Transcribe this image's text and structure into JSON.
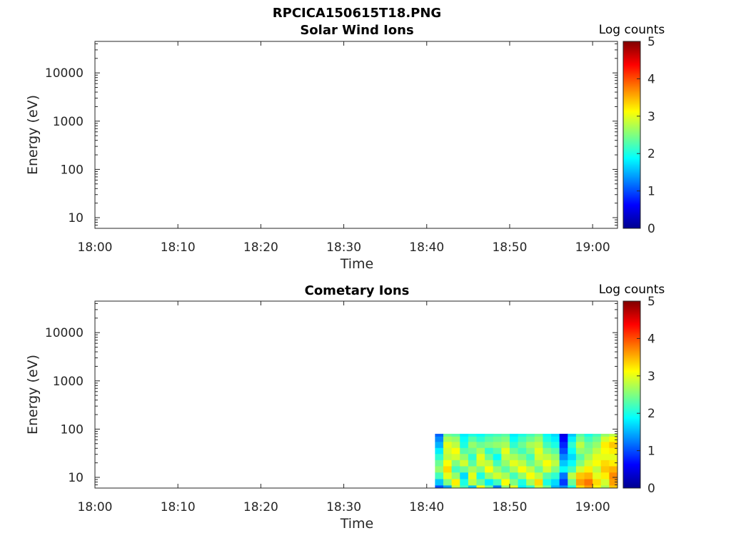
{
  "figure": {
    "title": "RPCICA150615T18.PNG"
  },
  "chart_data": [
    {
      "type": "heatmap",
      "title": "Solar Wind Ions",
      "xlabel": "Time",
      "ylabel": "Energy (eV)",
      "x_ticks": [
        "18:00",
        "18:10",
        "18:20",
        "18:30",
        "18:40",
        "18:50",
        "19:00"
      ],
      "xlim": [
        "18:00",
        "19:03"
      ],
      "y_scale": "log",
      "y_ticks": [
        10,
        100,
        1000,
        10000
      ],
      "y_tick_labels": [
        "10",
        "100",
        "1000",
        "10000"
      ],
      "ylim": [
        6,
        45000
      ],
      "colorbar": {
        "label": "Log counts",
        "range": [
          0,
          5
        ],
        "ticks": [
          "0",
          "1",
          "2",
          "3",
          "4",
          "5"
        ],
        "colormap": "jet"
      },
      "data": []
    },
    {
      "type": "heatmap",
      "title": "Cometary Ions",
      "xlabel": "Time",
      "ylabel": "Energy (eV)",
      "x_ticks": [
        "18:00",
        "18:10",
        "18:20",
        "18:30",
        "18:40",
        "18:50",
        "19:00"
      ],
      "xlim": [
        "18:00",
        "19:03"
      ],
      "y_scale": "log",
      "y_ticks": [
        10,
        100,
        1000,
        10000
      ],
      "y_tick_labels": [
        "10",
        "100",
        "1000",
        "10000"
      ],
      "ylim": [
        6,
        45000
      ],
      "colorbar": {
        "label": "Log counts",
        "range": [
          0,
          5
        ],
        "ticks": [
          "0",
          "1",
          "2",
          "3",
          "4",
          "5"
        ],
        "colormap": "jet"
      },
      "data": {
        "time_start": "18:41",
        "time_end": "19:03",
        "energy_range": [
          6,
          80
        ],
        "times": [
          "18:41",
          "18:42",
          "18:43",
          "18:44",
          "18:45",
          "18:46",
          "18:47",
          "18:48",
          "18:49",
          "18:50",
          "18:51",
          "18:52",
          "18:53",
          "18:54",
          "18:55",
          "18:56",
          "18:57",
          "18:58",
          "18:59",
          "19:00",
          "19:01",
          "19:02"
        ],
        "energies": [
          6,
          8,
          11,
          15,
          20,
          27,
          36,
          48,
          64,
          80
        ],
        "log_counts": [
          [
            1.0,
            1.4,
            2.8,
            2.2,
            1.6,
            3.1,
            2.4,
            1.2,
            2.6,
            3.0,
            1.8,
            2.1,
            2.9,
            2.4,
            1.5,
            1.3,
            2.0,
            3.3,
            3.6,
            3.1,
            2.7,
            3.4
          ],
          [
            1.6,
            2.5,
            3.2,
            2.0,
            2.8,
            2.4,
            1.8,
            2.2,
            3.1,
            2.5,
            2.0,
            2.7,
            3.3,
            2.0,
            1.7,
            0.9,
            2.4,
            3.6,
            3.8,
            3.3,
            2.9,
            3.6
          ],
          [
            2.2,
            3.0,
            2.6,
            1.7,
            3.0,
            2.0,
            2.6,
            2.9,
            2.7,
            2.2,
            2.6,
            3.1,
            2.8,
            2.3,
            2.1,
            1.2,
            2.8,
            3.4,
            3.5,
            3.0,
            3.2,
            3.7
          ],
          [
            2.6,
            3.3,
            2.2,
            2.4,
            2.7,
            2.5,
            3.1,
            2.6,
            2.3,
            2.7,
            3.1,
            2.8,
            2.4,
            2.9,
            2.5,
            1.9,
            2.2,
            2.9,
            3.2,
            2.8,
            3.4,
            3.5
          ],
          [
            2.4,
            3.1,
            2.5,
            2.9,
            2.3,
            2.9,
            2.8,
            2.2,
            2.6,
            3.0,
            2.8,
            2.4,
            2.7,
            3.1,
            2.8,
            1.6,
            1.9,
            2.5,
            2.9,
            3.1,
            3.3,
            3.2
          ],
          [
            2.1,
            2.8,
            2.9,
            2.6,
            2.1,
            3.0,
            2.4,
            1.9,
            2.8,
            2.7,
            2.5,
            2.2,
            2.9,
            2.8,
            2.6,
            1.3,
            1.7,
            2.3,
            2.7,
            3.0,
            3.0,
            3.0
          ],
          [
            1.8,
            2.9,
            3.1,
            2.3,
            2.4,
            2.7,
            2.1,
            2.3,
            3.0,
            2.4,
            2.2,
            2.5,
            3.0,
            2.5,
            2.3,
            1.0,
            1.9,
            2.6,
            2.5,
            2.8,
            3.1,
            3.2
          ],
          [
            1.5,
            3.0,
            2.8,
            2.0,
            2.6,
            2.4,
            2.5,
            2.6,
            2.7,
            2.1,
            2.4,
            2.7,
            2.8,
            2.2,
            2.0,
            0.8,
            2.1,
            2.8,
            2.4,
            2.6,
            3.2,
            3.4
          ],
          [
            1.3,
            2.7,
            2.6,
            1.9,
            2.3,
            2.1,
            2.3,
            2.4,
            2.5,
            1.9,
            2.2,
            2.4,
            2.6,
            2.0,
            1.8,
            0.6,
            1.8,
            2.5,
            2.2,
            2.4,
            2.9,
            3.1
          ],
          [
            1.1,
            2.4,
            2.3,
            1.8,
            2.0,
            1.9,
            2.1,
            2.2,
            2.3,
            1.8,
            2.0,
            2.2,
            2.4,
            1.9,
            1.7,
            0.5,
            1.6,
            2.3,
            2.0,
            2.2,
            2.6,
            2.8
          ]
        ]
      }
    }
  ]
}
